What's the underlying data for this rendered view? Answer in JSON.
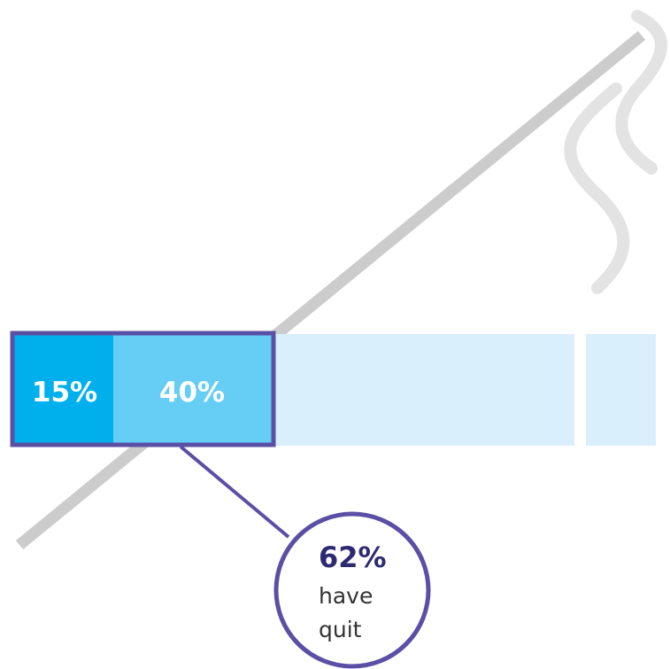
{
  "colors": {
    "background": "#ffffff",
    "line_gray": "#cccccc",
    "smoke_gray": "#e3e3e3",
    "segment_dark": "#00b0ec",
    "segment_mid": "#66cdf5",
    "segment_light": "#d9effb",
    "outline_purple": "#5b4fa5",
    "callout_text": "#2d2a72",
    "body_text": "#333333"
  },
  "bar": {
    "segment_1": {
      "label": "15%",
      "value": 15
    },
    "segment_2": {
      "label": "40%",
      "value": 40
    }
  },
  "callout": {
    "percent": "62%",
    "line1": "have",
    "line2": "quit"
  }
}
